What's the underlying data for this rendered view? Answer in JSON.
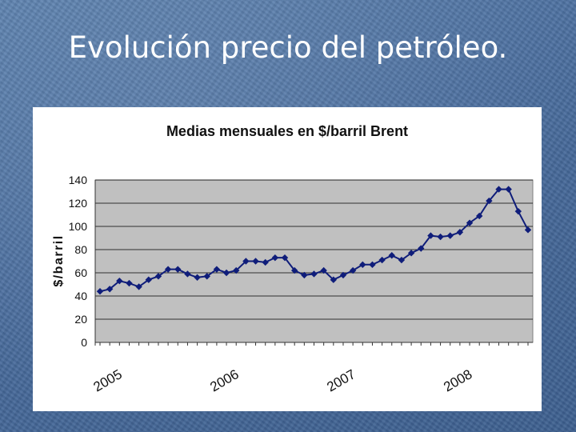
{
  "slide": {
    "title": "Evolución precio del petróleo."
  },
  "chart_data": {
    "type": "line",
    "title": "Medias mensuales en $/barril Brent",
    "xlabel": "",
    "ylabel": "$/barril",
    "ylim": [
      0,
      140
    ],
    "yticks": [
      0,
      20,
      40,
      60,
      80,
      100,
      120,
      140
    ],
    "xtick_labels": [
      "2005",
      "2006",
      "2007",
      "2008"
    ],
    "xtick_indices": [
      0,
      12,
      24,
      36
    ],
    "grid": true,
    "legend": "none",
    "colors": {
      "series": "#0f1d7a",
      "plot_bg": "#c0c0c0",
      "grid": "#000000"
    },
    "series": [
      {
        "name": "Brent",
        "values": [
          44,
          46,
          53,
          51,
          48,
          54,
          57,
          63,
          63,
          59,
          56,
          57,
          63,
          60,
          62,
          70,
          70,
          69,
          73,
          73,
          62,
          58,
          59,
          62,
          54,
          58,
          62,
          67,
          67,
          71,
          75,
          71,
          77,
          81,
          92,
          91,
          92,
          95,
          103,
          109,
          122,
          132,
          132,
          113,
          97
        ]
      }
    ]
  }
}
